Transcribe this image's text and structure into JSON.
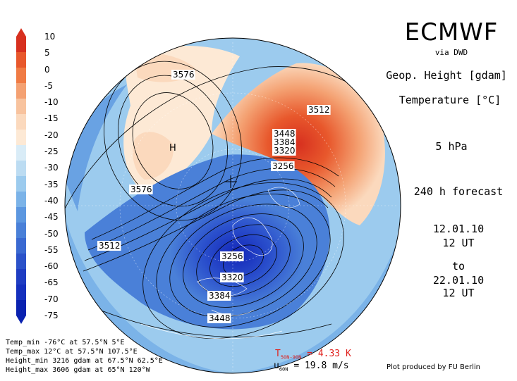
{
  "header": {
    "title": "ECMWF",
    "subtitle": "via DWD",
    "variable1": "Geop. Height [gdam]",
    "variable2": "Temperature [°C]",
    "level": "5 hPa",
    "forecast": "240 h forecast",
    "date_start": "12.01.10",
    "time_start": "12 UT",
    "to": "to",
    "date_end": "22.01.10",
    "time_end": "12 UT"
  },
  "colorbar": {
    "ticks": [
      "10",
      "5",
      "0",
      "-5",
      "-10",
      "-15",
      "-20",
      "-25",
      "-30",
      "-35",
      "-40",
      "-45",
      "-50",
      "-55",
      "-60",
      "-65",
      "-70",
      "-75"
    ],
    "colors": [
      "#d7301f",
      "#e8582c",
      "#f07b44",
      "#f4a172",
      "#f8c39e",
      "#fbd9bd",
      "#fde9d5",
      "#d9ecf7",
      "#bcdcf2",
      "#9ccbee",
      "#7bb3e8",
      "#5c97e0",
      "#4a80d8",
      "#3a69d1",
      "#2b52c9",
      "#1f3dc2",
      "#1530bd",
      "#0a22b0"
    ]
  },
  "map": {
    "contour_labels": [
      "3576",
      "3576",
      "3512",
      "3512",
      "3448",
      "3384",
      "3320",
      "3256",
      "3256",
      "3320",
      "3384",
      "3448"
    ],
    "high_marker": "H"
  },
  "stats": {
    "temp_min": "Temp_min -76°C at 57.5°N 5°E",
    "temp_max": "Temp_max 12°C at 57.5°N 107.5°E",
    "height_min": "Height_min 3216 gdam at 67.5°N 62.5°E",
    "height_max": "Height_max 3606 gdam at 65°N 120°W"
  },
  "footer": {
    "tdiff_label": "T",
    "tdiff_sub": "50N-90N",
    "tdiff_value": "= 4.33 K",
    "umean_label": "u",
    "umean_sub": "60N",
    "umean_value": "= 19.8 m/s",
    "credit": "Plot produced by FU Berlin"
  }
}
